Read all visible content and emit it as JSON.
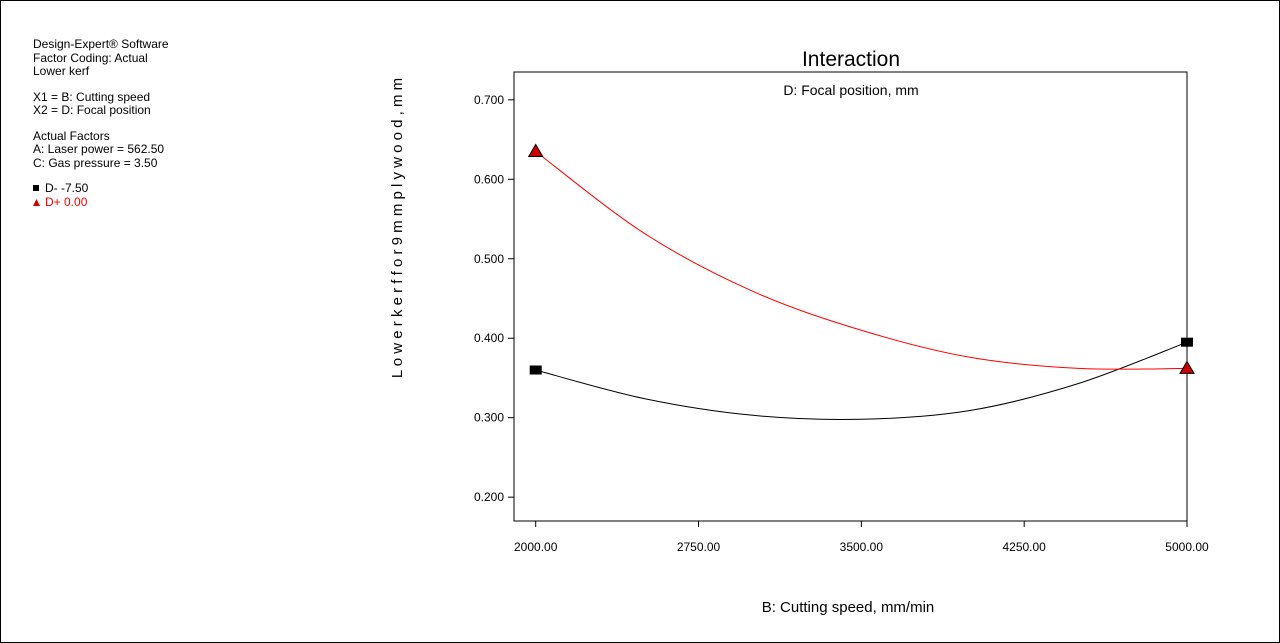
{
  "info_panel": {
    "software": "Design-Expert® Software",
    "coding": "Factor Coding: Actual",
    "response": "Lower kerf",
    "x1": "X1 = B: Cutting speed",
    "x2": "X2 = D: Focal position",
    "actual_title": "Actual Factors",
    "factor_a": "A: Laser power = 562.50",
    "factor_c": "C: Gas pressure = 3.50"
  },
  "colors": {
    "d_minus": "#000000",
    "d_plus": "#ff0000",
    "d_plus_marker": "#cc0000"
  },
  "chart_data": {
    "type": "line",
    "title": "Interaction",
    "subtitle": "D: Focal position, mm",
    "xlabel": "B: Cutting speed, mm/min",
    "ylabel": "L o w e r  k e r f  f o r  9  m m  p l y w o o d ,  m m",
    "xlim": [
      1900,
      5000
    ],
    "ylim": [
      0.17,
      0.735
    ],
    "x_ticks": [
      2000,
      2750,
      3500,
      4250,
      5000
    ],
    "x_tick_labels": [
      "2000.00",
      "2750.00",
      "3500.00",
      "4250.00",
      "5000.00"
    ],
    "y_ticks": [
      0.2,
      0.3,
      0.4,
      0.5,
      0.6,
      0.7
    ],
    "y_tick_labels": [
      "0.200",
      "0.300",
      "0.400",
      "0.500",
      "0.600",
      "0.700"
    ],
    "grid": false,
    "legend_position": "left panel",
    "series": [
      {
        "name": "D- -7.50",
        "marker": "square",
        "endpoints": [
          {
            "x": 2000,
            "y": 0.36
          },
          {
            "x": 5000,
            "y": 0.395
          }
        ],
        "x": [
          2000,
          2500,
          3000,
          3500,
          4000,
          4500,
          5000
        ],
        "y": [
          0.36,
          0.324,
          0.303,
          0.298,
          0.309,
          0.343,
          0.395
        ]
      },
      {
        "name": "D+ 0.00",
        "marker": "triangle",
        "endpoints": [
          {
            "x": 2000,
            "y": 0.635
          },
          {
            "x": 5000,
            "y": 0.362
          }
        ],
        "x": [
          2000,
          2500,
          3000,
          3500,
          4000,
          4500,
          5000
        ],
        "y": [
          0.635,
          0.532,
          0.459,
          0.41,
          0.376,
          0.362,
          0.362
        ]
      }
    ]
  }
}
